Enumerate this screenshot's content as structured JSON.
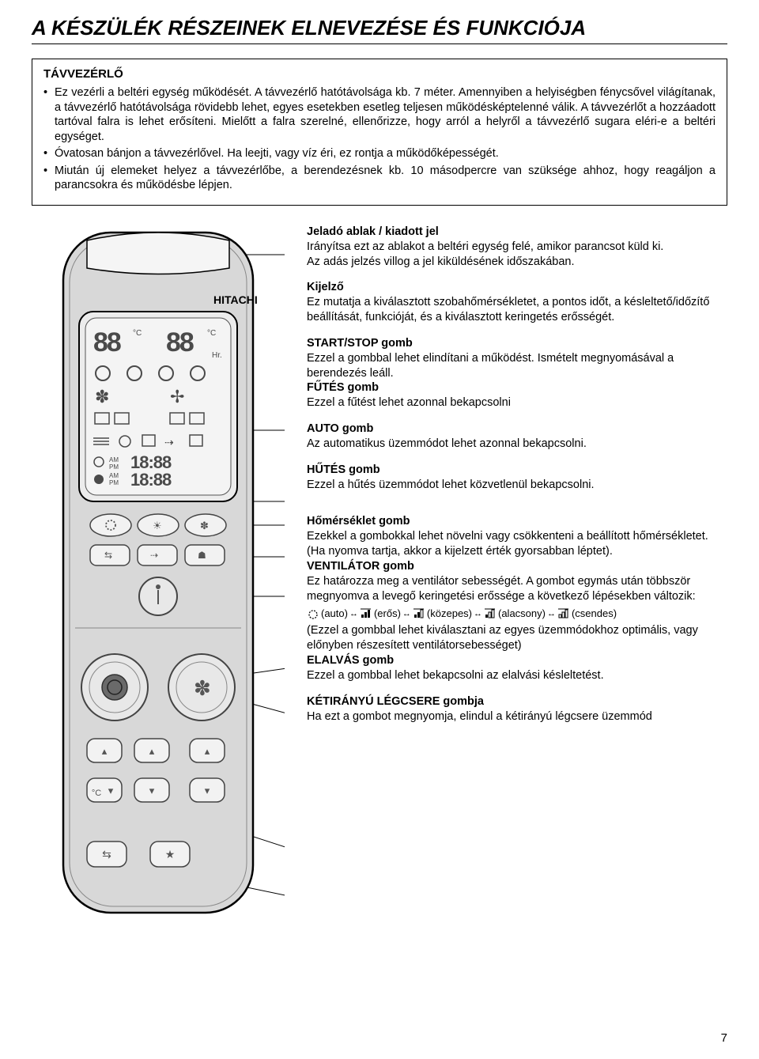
{
  "page_title": "A KÉSZÜLÉK RÉSZEINEK ELNEVEZÉSE ÉS FUNKCIÓJA",
  "info_box": {
    "title": "TÁVVEZÉRLŐ",
    "items": [
      "Ez vezérli a beltéri egység működését. A távvezérlő hatótávolsága kb. 7 méter. Amennyiben a helyiségben fénycsővel világítanak, a távvezérlő hatótávolsága rövidebb lehet, egyes esetekben esetleg teljesen működésképtelenné válik. A távvezérlőt a hozzáadott tartóval falra is lehet erősíteni. Mielőtt a falra szerelné, ellenőrizze, hogy arról a helyről a távvezérlő sugara eléri-e a beltéri egységet.",
      "Óvatosan bánjon a távvezérlővel. Ha leejti, vagy víz éri, ez rontja a működőképességét.",
      "Miután új elemeket helyez a távvezérlőbe, a berendezésnek kb. 10 másodpercre van szüksége ahhoz, hogy reagáljon a parancsokra és működésbe lépjen."
    ]
  },
  "descriptions": [
    {
      "title": "Jeladó ablak / kiadott jel",
      "body": "Irányítsa ezt az ablakot a beltéri egység felé, amikor parancsot küld ki.\nAz adás jelzés villog a jel kiküldésének időszakában."
    },
    {
      "title": "Kijelző",
      "body": "Ez mutatja a kiválasztott szobahőmérsékletet, a pontos időt, a késleltető/időzítő beállítását, funkcióját, és a kiválasztott keringetés erősségét."
    },
    {
      "title": "START/STOP gomb",
      "body": "Ezzel a gombbal lehet elindítani a működést. Ismételt megnyomásával a berendezés leáll."
    },
    {
      "title": "FŰTÉS gomb",
      "body": "Ezzel a fűtést lehet azonnal bekapcsolni"
    },
    {
      "title": "AUTO gomb",
      "body": "Az automatikus üzemmódot lehet azonnal bekapcsolni."
    },
    {
      "title": "HŰTÉS gomb",
      "body": "Ezzel a hűtés üzemmódot lehet közvetlenül bekapcsolni."
    },
    {
      "title": "Hőmérséklet gomb",
      "body": "Ezekkel a gombokkal lehet növelni vagy csökkenteni a beállított hőmérsékletet. (Ha nyomva tartja, akkor a kijelzett érték gyorsabban léptet)."
    },
    {
      "title": "VENTILÁTOR gomb",
      "body_pre": "Ez határozza meg a ventilátor sebességét. A gombot egymás után többször megnyomva a levegő keringetési erőssége a következő lépésekben változik:",
      "fan_levels": [
        "(auto)",
        "(erős)",
        "(közepes)",
        "(alacsony)",
        "(csendes)"
      ],
      "body_post": "(Ezzel a gombbal lehet kiválasztani az egyes üzemmódokhoz optimális, vagy előnyben részesített ventilátorsebességet)"
    },
    {
      "title": "ELALVÁS gomb",
      "body": "Ezzel a gombbal lehet bekapcsolni az elalvási késleltetést."
    },
    {
      "title": "KÉTIRÁNYÚ LÉGCSERE gombja",
      "body": "Ha ezt a gombot megnyomja, elindul a kétirányú légcsere üzemmód"
    }
  ],
  "remote": {
    "brand": "HITACHI",
    "display_segments": {
      "temp_left": "88",
      "temp_right": "88",
      "unit_c": "°C",
      "hr": "Hr.",
      "time1": "18:88",
      "time2": "18:88",
      "am": "AM",
      "pm": "PM"
    }
  },
  "colors": {
    "text": "#000000",
    "bg": "#ffffff",
    "remote_body": "#d8d8d8",
    "remote_outline": "#000000",
    "lcd_bg": "#ececec",
    "lcd_segment": "#4a4a4a",
    "button_light": "#f2f2f2",
    "button_dark": "#6a6a6a",
    "button_outline": "#444444"
  },
  "page_number": "7"
}
